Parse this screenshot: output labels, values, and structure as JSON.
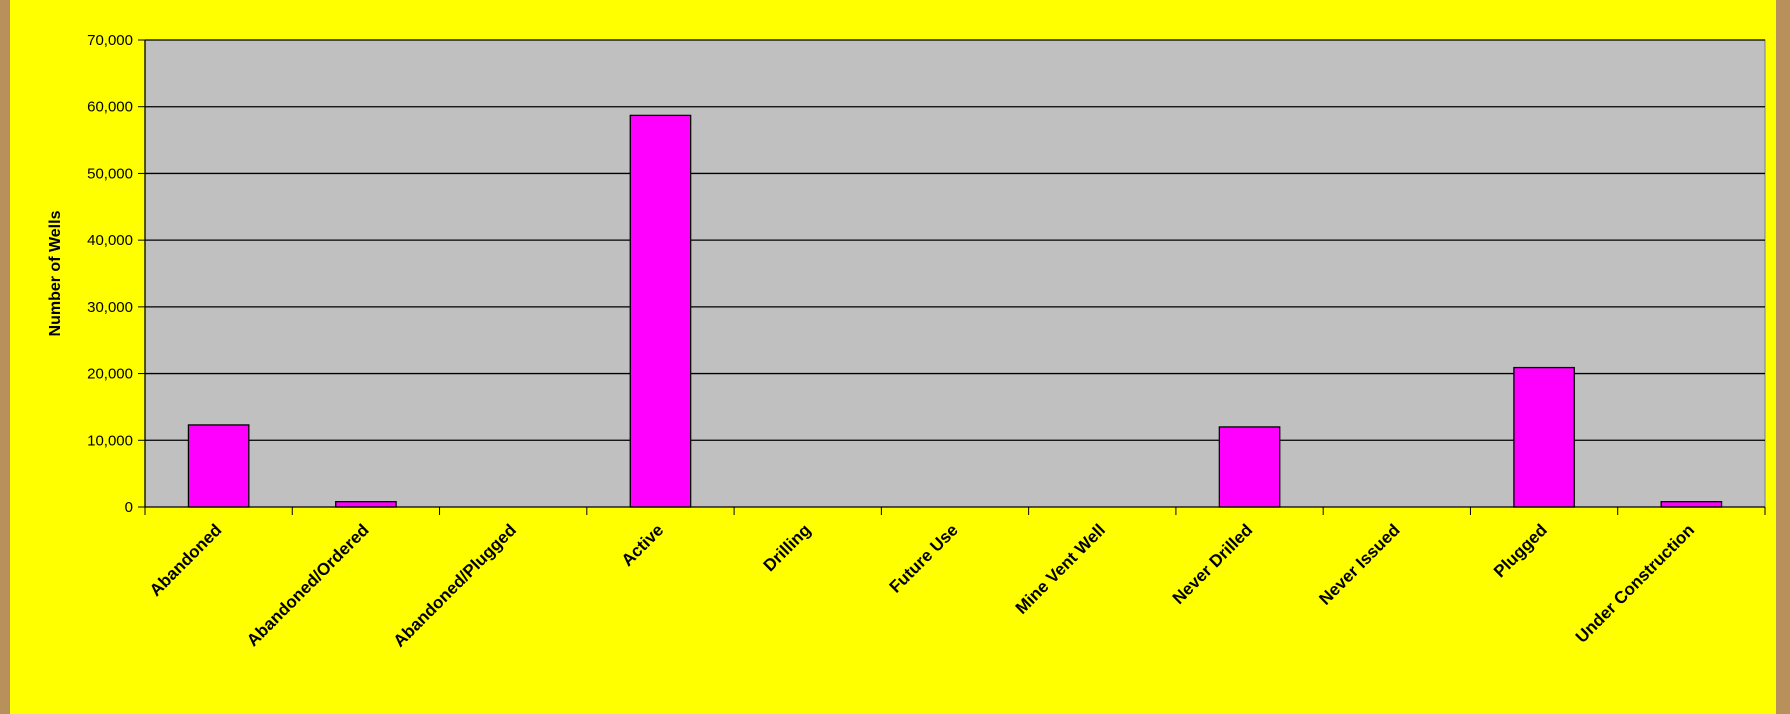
{
  "colors": {
    "background": "#ffff00",
    "plot_area": "#c0c0c0",
    "bar_fill": "#ff00ff",
    "bar_stroke": "#000000",
    "grid": "#000000",
    "outer_border": "#b8905c"
  },
  "chart_data": {
    "type": "bar",
    "title": "",
    "xlabel": "",
    "ylabel": "Number of Wells",
    "ylim": [
      0,
      70000
    ],
    "yticks": [
      0,
      10000,
      20000,
      30000,
      40000,
      50000,
      60000,
      70000
    ],
    "ytick_labels": [
      "0",
      "10,000",
      "20,000",
      "30,000",
      "40,000",
      "50,000",
      "60,000",
      "70,000"
    ],
    "grid": true,
    "legend": "none",
    "categories": [
      "Abandoned",
      "Abandoned/Ordered",
      "Abandoned/Plugged",
      "Active",
      "Drilling",
      "Future Use",
      "Mine Vent Well",
      "Never Drilled",
      "Never Issued",
      "Plugged",
      "Under Construction"
    ],
    "values": [
      12300,
      800,
      0,
      58700,
      0,
      0,
      0,
      12000,
      0,
      20900,
      800
    ]
  }
}
